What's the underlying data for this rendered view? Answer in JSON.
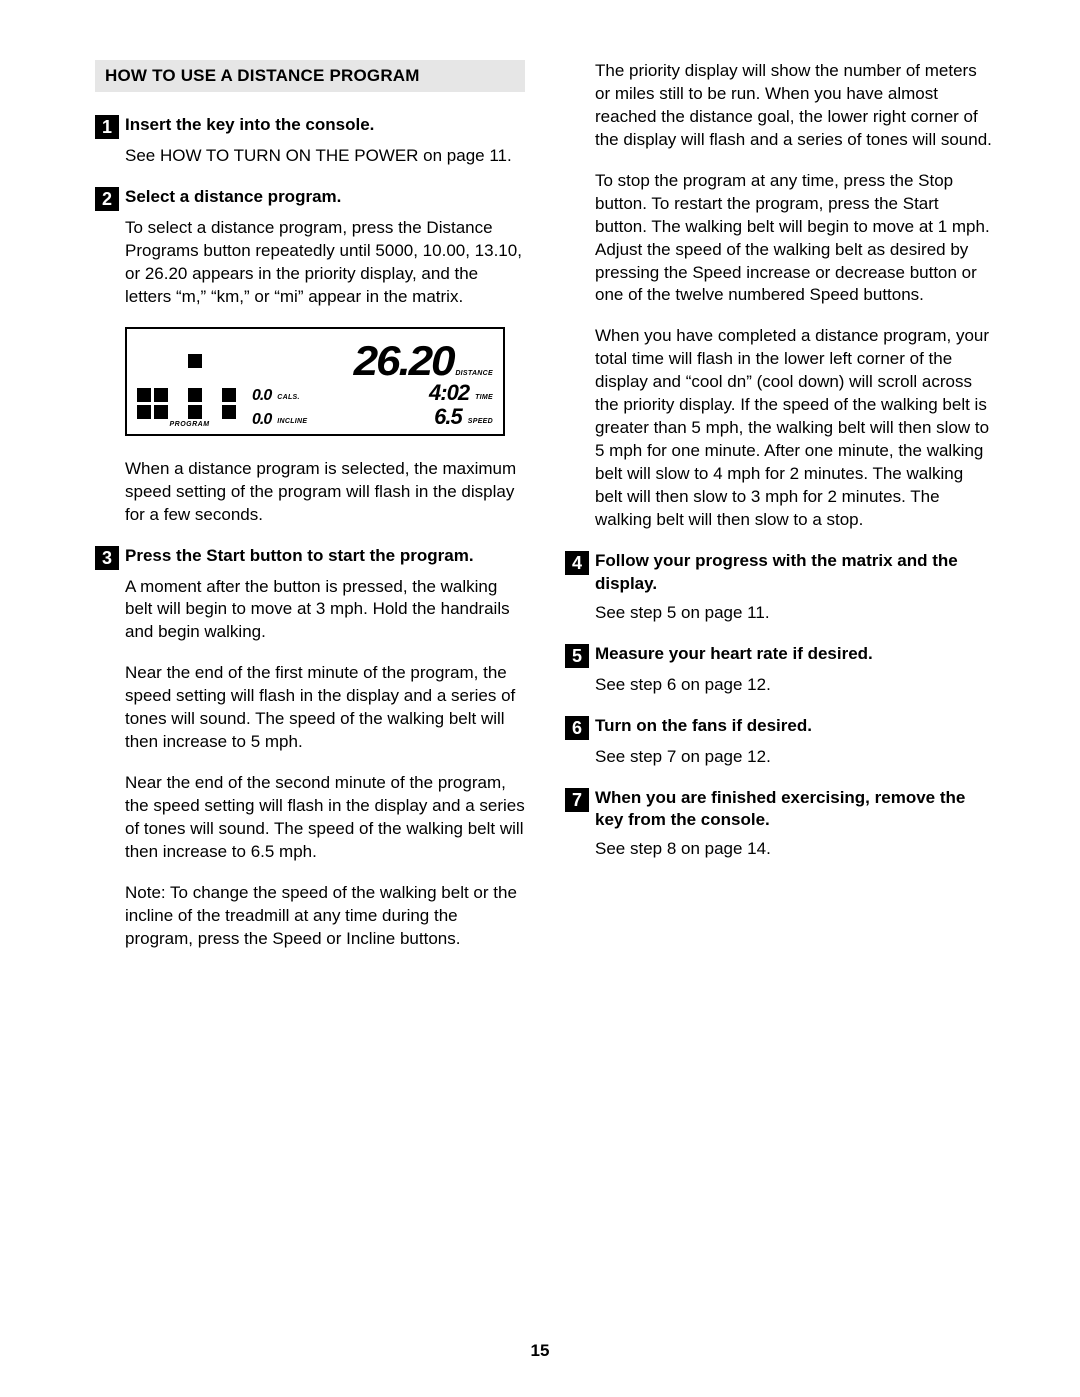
{
  "section_header": "HOW TO USE A DISTANCE PROGRAM",
  "page_number": "15",
  "left": {
    "step1": {
      "num": "1",
      "title": "Insert the key into the console.",
      "body": "See HOW TO TURN ON THE POWER on page 11."
    },
    "step2": {
      "num": "2",
      "title": "Select a distance program.",
      "body1": "To select a distance program, press the Distance Programs button repeatedly until 5000, 10.00, 13.10, or 26.20 appears in the priority display, and the letters “m,” “km,” or “mi” appear in the matrix.",
      "body2": "When a distance program is selected, the maximum speed setting of the program will flash in the display for a few seconds."
    },
    "step3": {
      "num": "3",
      "title": "Press the Start button to start the program.",
      "body1": "A moment after the button is pressed, the walking belt will begin to move at 3 mph. Hold the handrails and begin walking.",
      "body2": "Near the end of the first minute of the program, the speed setting will flash in the display and a series of tones will sound. The speed of the walking belt will then increase to 5 mph.",
      "body3": "Near the end of the second minute of the program, the speed setting will flash in the display and a series of tones will sound. The speed of the walking belt will then increase to 6.5 mph.",
      "body4": "Note: To change the speed of the walking belt or the incline of the treadmill at any time during the program, press the Speed or Incline buttons."
    }
  },
  "right": {
    "cont1": "The priority display will show the number of meters or miles still to be run. When you have almost reached the distance goal, the lower right corner of the display will flash and a series of tones will sound.",
    "cont2": "To stop the program at any time, press the Stop button. To restart the program, press the Start button. The walking belt will begin to move at 1 mph. Adjust the speed of the walking belt as desired by pressing the Speed increase or decrease button or one of the twelve numbered Speed buttons.",
    "cont3": "When you have completed a distance program, your total time will flash in the lower left corner of the display and “cool dn” (cool down) will scroll across the priority display. If the speed of the walking belt is greater than 5 mph, the walking belt will then slow to 5 mph for one minute. After one minute, the walking belt will slow to 4 mph for 2 minutes. The walking belt will then slow to 3 mph for 2 minutes. The walking belt will then slow to a stop.",
    "step4": {
      "num": "4",
      "title": "Follow your progress with the matrix and the display.",
      "body": "See step 5 on page 11."
    },
    "step5": {
      "num": "5",
      "title": "Measure your heart rate if desired.",
      "body": "See step 6 on page 12."
    },
    "step6": {
      "num": "6",
      "title": "Turn on the fans if desired.",
      "body": "See step 7 on page 12."
    },
    "step7": {
      "num": "7",
      "title": "When you are finished exercising, remove the key from the console.",
      "body": "See step 8 on page 14."
    }
  },
  "console_display": {
    "distance": "26.20",
    "distance_label": "DISTANCE",
    "cals": "0.0",
    "cals_label": "CALS.",
    "time": "4:02",
    "time_label": "TIME",
    "incline": "0.0",
    "incline_label": "INCLINE",
    "speed": "6.5",
    "speed_label": "SPEED",
    "program_label": "PROGRAM",
    "matrix_pattern": [
      [
        0,
        0,
        0,
        0,
        0,
        0
      ],
      [
        0,
        0,
        0,
        1,
        0,
        0
      ],
      [
        0,
        0,
        0,
        0,
        0,
        0
      ],
      [
        1,
        1,
        0,
        1,
        0,
        1
      ],
      [
        1,
        1,
        0,
        1,
        0,
        1
      ]
    ]
  }
}
